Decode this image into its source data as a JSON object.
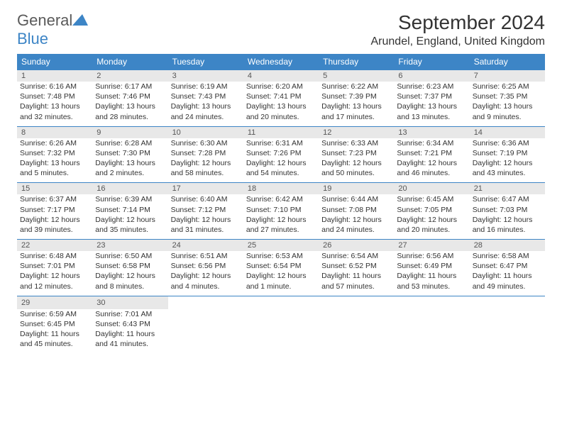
{
  "logo": {
    "main": "General",
    "sub": "Blue"
  },
  "title": "September 2024",
  "location": "Arundel, England, United Kingdom",
  "colors": {
    "header_bg": "#3d85c6",
    "header_text": "#ffffff",
    "daynum_bg": "#e8e8e8",
    "border": "#3d85c6",
    "text": "#333333",
    "logo_sub": "#3d85c6",
    "logo_main": "#5a5a5a"
  },
  "day_headers": [
    "Sunday",
    "Monday",
    "Tuesday",
    "Wednesday",
    "Thursday",
    "Friday",
    "Saturday"
  ],
  "weeks": [
    [
      {
        "n": "1",
        "sr": "6:16 AM",
        "ss": "7:48 PM",
        "dl": "13 hours and 32 minutes."
      },
      {
        "n": "2",
        "sr": "6:17 AM",
        "ss": "7:46 PM",
        "dl": "13 hours and 28 minutes."
      },
      {
        "n": "3",
        "sr": "6:19 AM",
        "ss": "7:43 PM",
        "dl": "13 hours and 24 minutes."
      },
      {
        "n": "4",
        "sr": "6:20 AM",
        "ss": "7:41 PM",
        "dl": "13 hours and 20 minutes."
      },
      {
        "n": "5",
        "sr": "6:22 AM",
        "ss": "7:39 PM",
        "dl": "13 hours and 17 minutes."
      },
      {
        "n": "6",
        "sr": "6:23 AM",
        "ss": "7:37 PM",
        "dl": "13 hours and 13 minutes."
      },
      {
        "n": "7",
        "sr": "6:25 AM",
        "ss": "7:35 PM",
        "dl": "13 hours and 9 minutes."
      }
    ],
    [
      {
        "n": "8",
        "sr": "6:26 AM",
        "ss": "7:32 PM",
        "dl": "13 hours and 5 minutes."
      },
      {
        "n": "9",
        "sr": "6:28 AM",
        "ss": "7:30 PM",
        "dl": "13 hours and 2 minutes."
      },
      {
        "n": "10",
        "sr": "6:30 AM",
        "ss": "7:28 PM",
        "dl": "12 hours and 58 minutes."
      },
      {
        "n": "11",
        "sr": "6:31 AM",
        "ss": "7:26 PM",
        "dl": "12 hours and 54 minutes."
      },
      {
        "n": "12",
        "sr": "6:33 AM",
        "ss": "7:23 PM",
        "dl": "12 hours and 50 minutes."
      },
      {
        "n": "13",
        "sr": "6:34 AM",
        "ss": "7:21 PM",
        "dl": "12 hours and 46 minutes."
      },
      {
        "n": "14",
        "sr": "6:36 AM",
        "ss": "7:19 PM",
        "dl": "12 hours and 43 minutes."
      }
    ],
    [
      {
        "n": "15",
        "sr": "6:37 AM",
        "ss": "7:17 PM",
        "dl": "12 hours and 39 minutes."
      },
      {
        "n": "16",
        "sr": "6:39 AM",
        "ss": "7:14 PM",
        "dl": "12 hours and 35 minutes."
      },
      {
        "n": "17",
        "sr": "6:40 AM",
        "ss": "7:12 PM",
        "dl": "12 hours and 31 minutes."
      },
      {
        "n": "18",
        "sr": "6:42 AM",
        "ss": "7:10 PM",
        "dl": "12 hours and 27 minutes."
      },
      {
        "n": "19",
        "sr": "6:44 AM",
        "ss": "7:08 PM",
        "dl": "12 hours and 24 minutes."
      },
      {
        "n": "20",
        "sr": "6:45 AM",
        "ss": "7:05 PM",
        "dl": "12 hours and 20 minutes."
      },
      {
        "n": "21",
        "sr": "6:47 AM",
        "ss": "7:03 PM",
        "dl": "12 hours and 16 minutes."
      }
    ],
    [
      {
        "n": "22",
        "sr": "6:48 AM",
        "ss": "7:01 PM",
        "dl": "12 hours and 12 minutes."
      },
      {
        "n": "23",
        "sr": "6:50 AM",
        "ss": "6:58 PM",
        "dl": "12 hours and 8 minutes."
      },
      {
        "n": "24",
        "sr": "6:51 AM",
        "ss": "6:56 PM",
        "dl": "12 hours and 4 minutes."
      },
      {
        "n": "25",
        "sr": "6:53 AM",
        "ss": "6:54 PM",
        "dl": "12 hours and 1 minute."
      },
      {
        "n": "26",
        "sr": "6:54 AM",
        "ss": "6:52 PM",
        "dl": "11 hours and 57 minutes."
      },
      {
        "n": "27",
        "sr": "6:56 AM",
        "ss": "6:49 PM",
        "dl": "11 hours and 53 minutes."
      },
      {
        "n": "28",
        "sr": "6:58 AM",
        "ss": "6:47 PM",
        "dl": "11 hours and 49 minutes."
      }
    ],
    [
      {
        "n": "29",
        "sr": "6:59 AM",
        "ss": "6:45 PM",
        "dl": "11 hours and 45 minutes."
      },
      {
        "n": "30",
        "sr": "7:01 AM",
        "ss": "6:43 PM",
        "dl": "11 hours and 41 minutes."
      },
      null,
      null,
      null,
      null,
      null
    ]
  ],
  "labels": {
    "sunrise": "Sunrise:",
    "sunset": "Sunset:",
    "daylight": "Daylight:"
  }
}
